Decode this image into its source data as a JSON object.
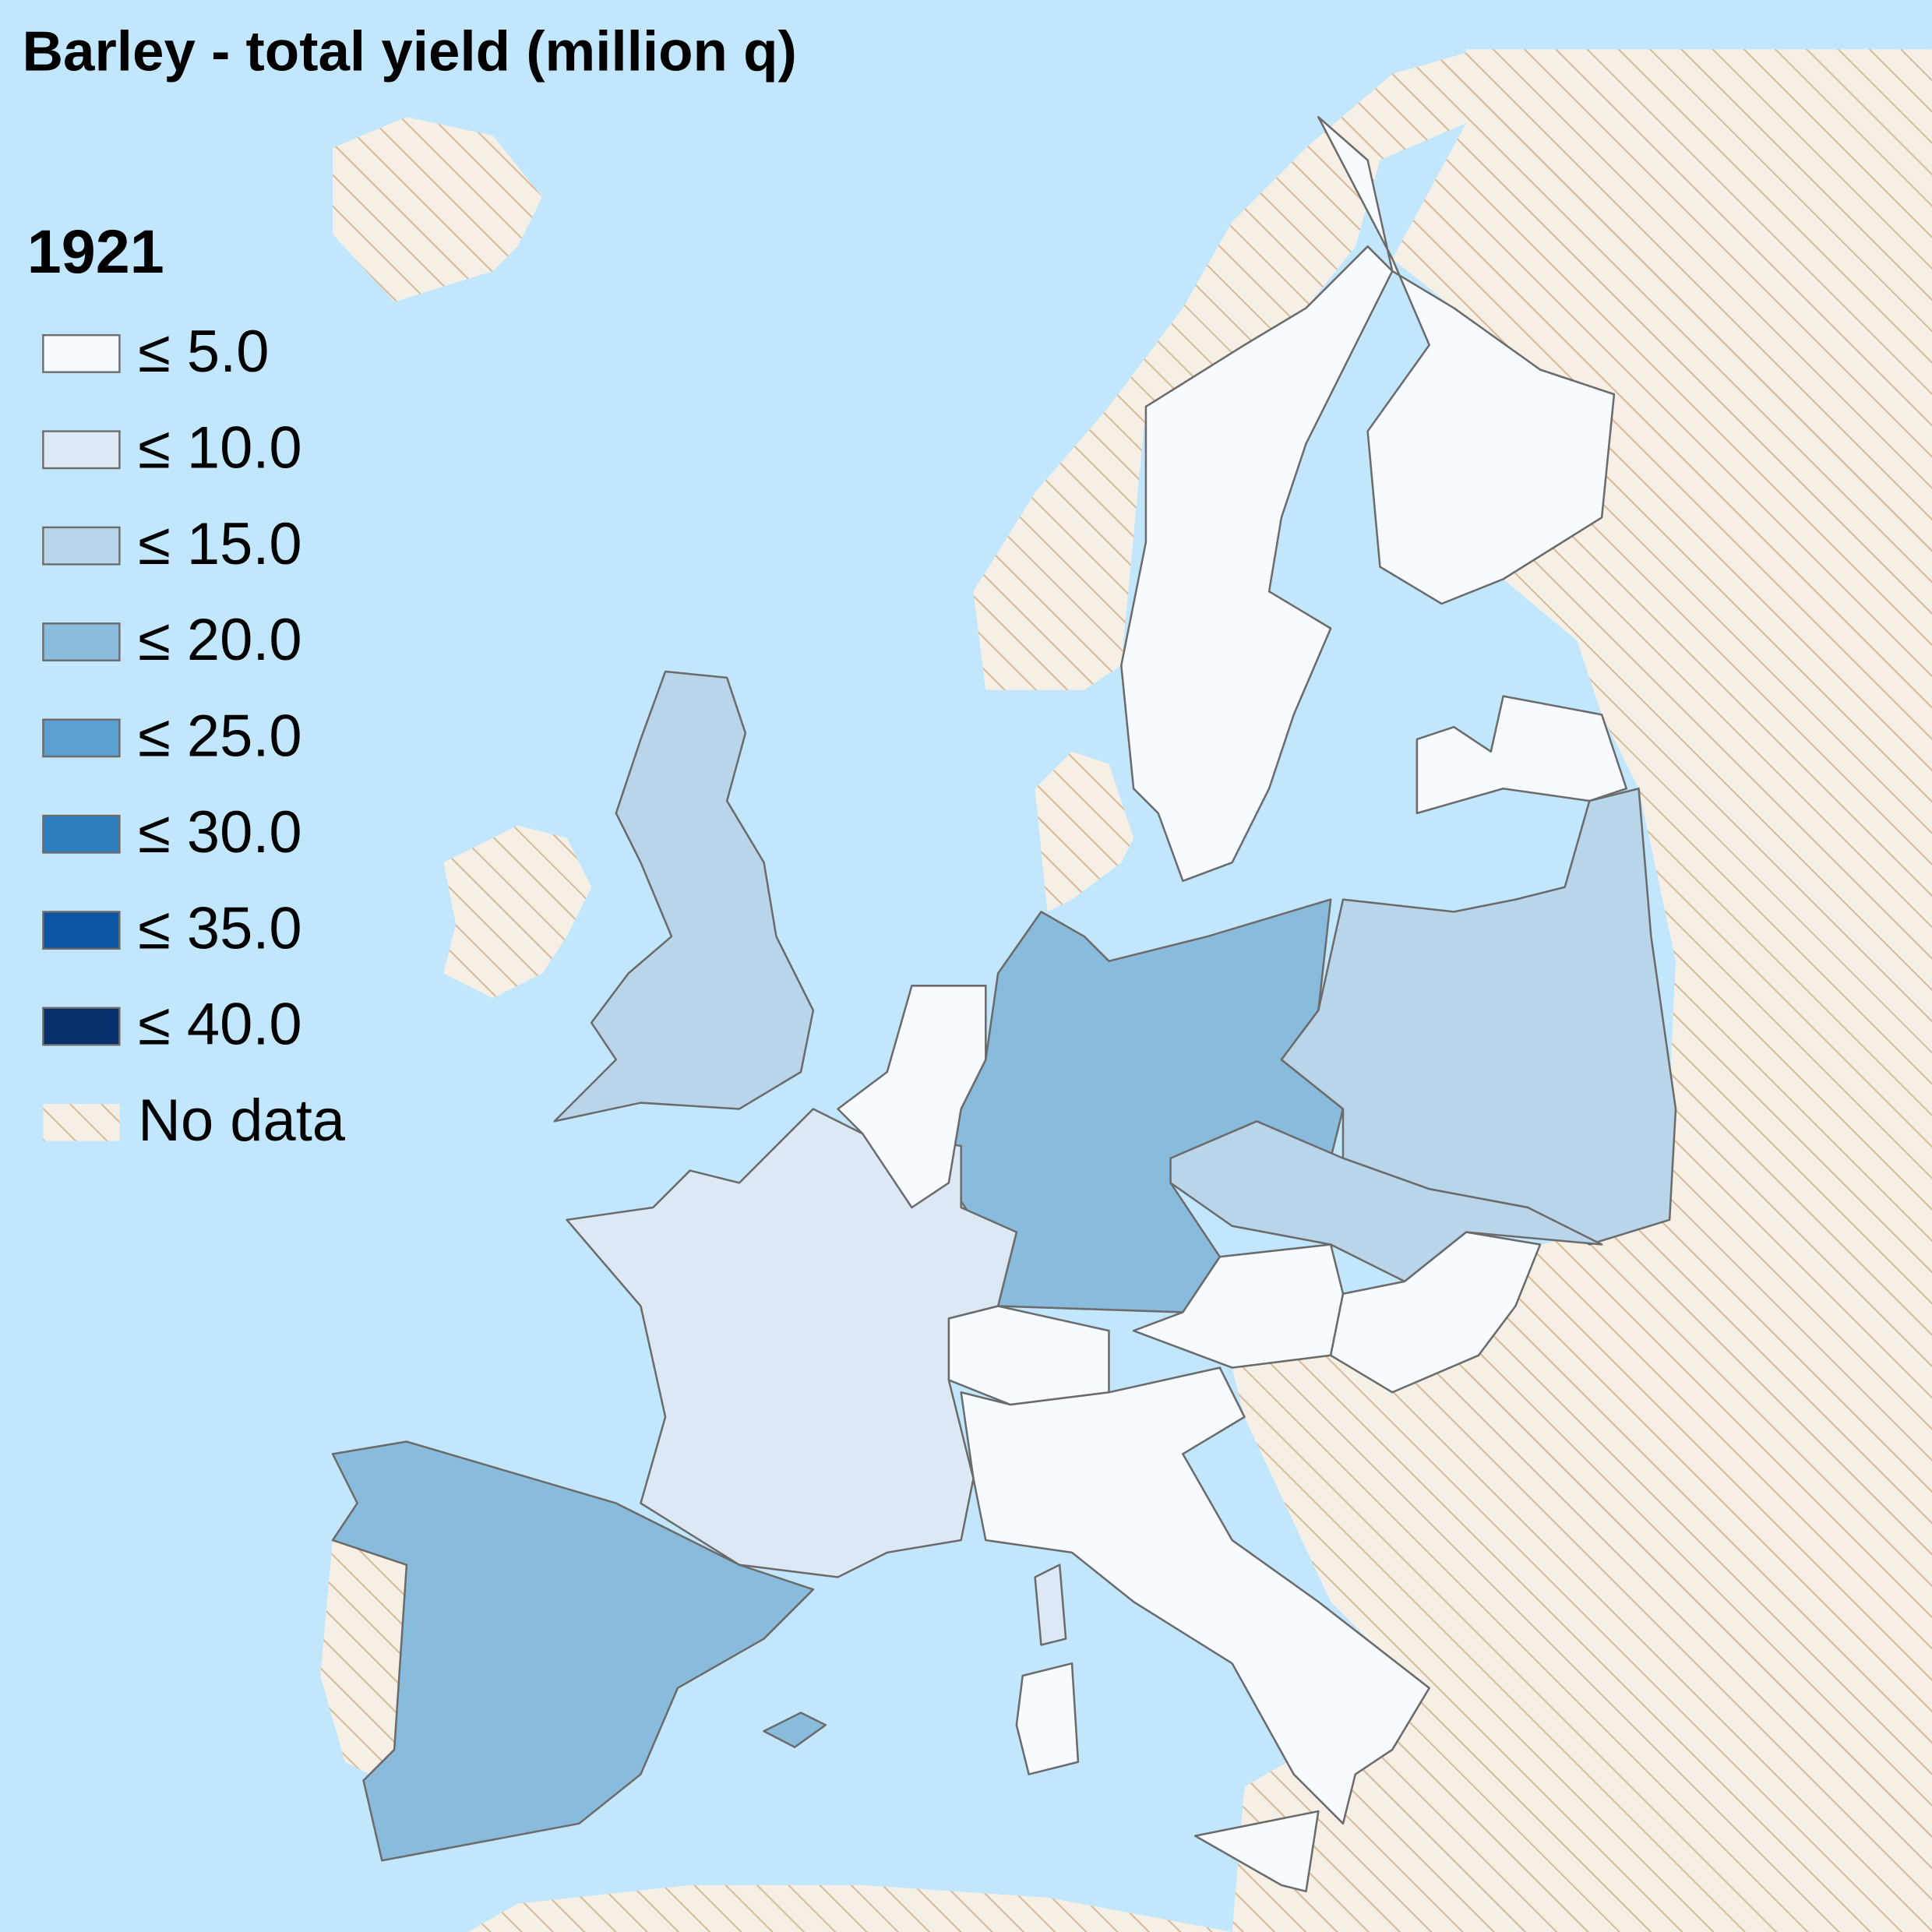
{
  "title": "Barley - total yield (million q)",
  "legend": {
    "title": "1921",
    "items": [
      {
        "label": "≤ 5.0",
        "color": "#f7fbff"
      },
      {
        "label": "≤ 10.0",
        "color": "#dce9f5"
      },
      {
        "label": "≤ 15.0",
        "color": "#b9d5ea"
      },
      {
        "label": "≤ 20.0",
        "color": "#89bcdc"
      },
      {
        "label": "≤ 25.0",
        "color": "#5a9fd0"
      },
      {
        "label": "≤ 30.0",
        "color": "#2e7dbf"
      },
      {
        "label": "≤ 35.0",
        "color": "#0b55a3"
      },
      {
        "label": "≤ 40.0",
        "color": "#072f6b"
      }
    ],
    "no_data": {
      "label": "No data"
    }
  }
}
